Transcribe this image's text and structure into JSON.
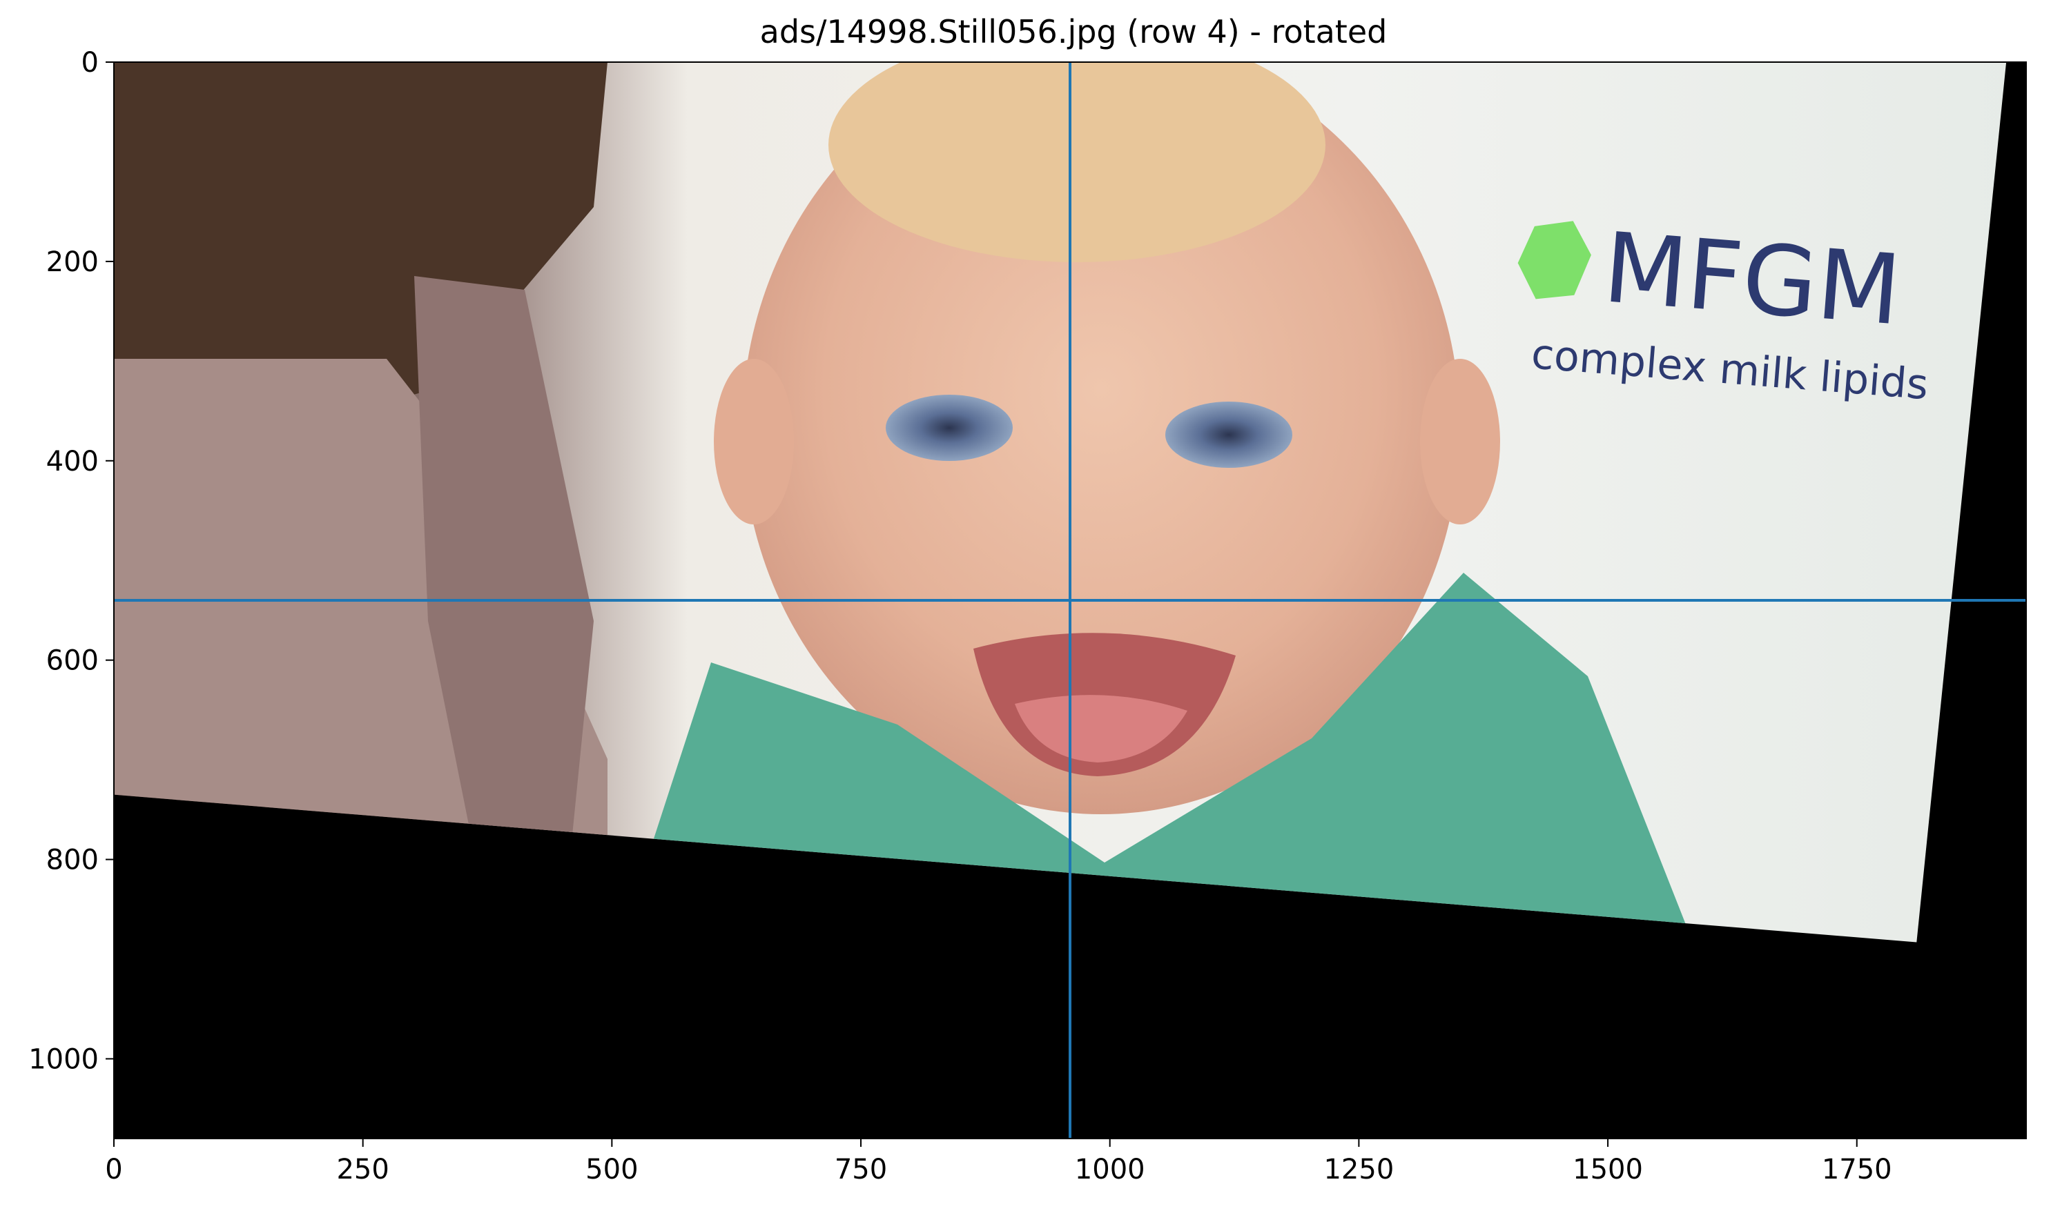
{
  "figure": {
    "title": "ads/14998.Still056.jpg (row 4) - rotated",
    "colors": {
      "crosshair": "#1f77b4",
      "background_fill": "#000000",
      "logo_text": "#2d3a70",
      "logo_gem": "#7ee06a"
    }
  },
  "image_content": {
    "logo_text": "MFGM",
    "logo_subtext": "complex milk lipids",
    "logo_icon": "green-gem-icon"
  },
  "chart_data": {
    "type": "image",
    "title": "ads/14998.Still056.jpg (row 4) - rotated",
    "xlim": [
      0,
      1920
    ],
    "ylim": [
      1080,
      0
    ],
    "x_ticks": [
      0,
      250,
      500,
      750,
      1000,
      1250,
      1500,
      1750
    ],
    "y_ticks": [
      0,
      200,
      400,
      600,
      800,
      1000
    ],
    "crosshair": {
      "x": 960,
      "y": 540
    },
    "rotated_frame_corners": [
      [
        0,
        0
      ],
      [
        1900,
        0
      ],
      [
        1810,
        883
      ],
      [
        0,
        735
      ]
    ]
  }
}
